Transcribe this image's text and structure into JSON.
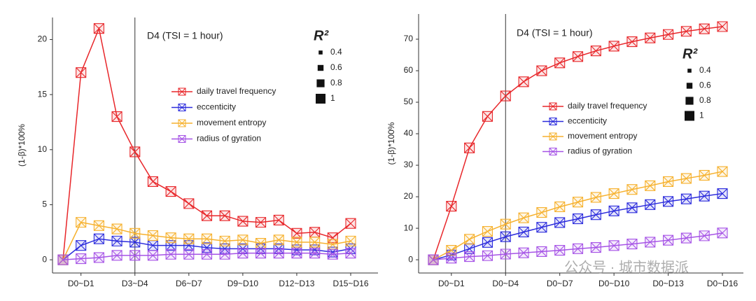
{
  "chart_data": [
    {
      "type": "line",
      "annotation": "D4 (TSI = 1 hour)",
      "y_label": "(1-β)*100%",
      "vline_category": "D3~D4",
      "categories": [
        null,
        "D0~D1",
        null,
        null,
        "D3~D4",
        null,
        null,
        "D6~D7",
        null,
        null,
        "D9~D10",
        null,
        null,
        "D12~D13",
        null,
        null,
        "D15~D16"
      ],
      "ylim": [
        -1.2,
        22
      ],
      "yticks": [
        0,
        5,
        10,
        15,
        20
      ],
      "size_legend": {
        "title": "R²",
        "values": [
          0.4,
          0.6,
          0.8,
          1.0
        ]
      },
      "series": [
        {
          "name": "daily travel frequency",
          "color": "#e8262a",
          "values": [
            0,
            17,
            21,
            13,
            9.8,
            7.1,
            6.2,
            5.1,
            4.0,
            4.0,
            3.5,
            3.4,
            3.6,
            2.4,
            2.5,
            2.0,
            3.3
          ]
        },
        {
          "name": "eccenticity",
          "color": "#2b2bdc",
          "values": [
            0,
            1.3,
            1.9,
            1.7,
            1.6,
            1.3,
            1.3,
            1.3,
            1.1,
            1.0,
            1.0,
            1.0,
            1.0,
            0.9,
            0.9,
            0.7,
            1.0
          ]
        },
        {
          "name": "movement entropy",
          "color": "#f6b12e",
          "values": [
            0,
            3.4,
            3.1,
            2.8,
            2.4,
            2.2,
            2.0,
            1.9,
            1.9,
            1.7,
            1.8,
            1.5,
            1.8,
            1.6,
            1.6,
            1.4,
            1.7
          ]
        },
        {
          "name": "radius of gyration",
          "color": "#a653e6",
          "values": [
            0,
            0.1,
            0.2,
            0.4,
            0.4,
            0.4,
            0.5,
            0.5,
            0.5,
            0.5,
            0.6,
            0.6,
            0.6,
            0.6,
            0.6,
            0.5,
            0.6
          ]
        }
      ]
    },
    {
      "type": "line",
      "annotation": "D4 (TSI = 1 hour)",
      "y_label": "(1-β)*100%",
      "vline_category": "D0~D4",
      "categories": [
        null,
        "D0~D1",
        null,
        null,
        "D0~D4",
        null,
        null,
        "D0~D7",
        null,
        null,
        "D0~D10",
        null,
        null,
        "D0~D13",
        null,
        null,
        "D0~D16"
      ],
      "ylim": [
        -4.2,
        78
      ],
      "yticks": [
        0,
        10,
        20,
        30,
        40,
        50,
        60,
        70
      ],
      "size_legend": {
        "title": "R²",
        "values": [
          0.4,
          0.6,
          0.8,
          1.0
        ]
      },
      "series": [
        {
          "name": "daily travel frequency",
          "color": "#e8262a",
          "values": [
            0,
            17,
            35.5,
            45.5,
            52,
            56.5,
            60,
            62.5,
            64.5,
            66.3,
            67.8,
            69.2,
            70.4,
            71.5,
            72.5,
            73.3,
            74.0
          ]
        },
        {
          "name": "eccenticity",
          "color": "#2b2bdc",
          "values": [
            0,
            1.5,
            3.5,
            5.5,
            7.3,
            8.8,
            10.3,
            11.8,
            13,
            14.3,
            15.5,
            16.5,
            17.5,
            18.5,
            19.3,
            20.2,
            21.0
          ]
        },
        {
          "name": "movement entropy",
          "color": "#f6b12e",
          "values": [
            0,
            3,
            6.5,
            9,
            11.3,
            13.3,
            15,
            16.8,
            18.3,
            19.8,
            21,
            22.3,
            23.5,
            24.8,
            25.8,
            26.8,
            28
          ]
        },
        {
          "name": "radius of gyration",
          "color": "#a653e6",
          "values": [
            0,
            0.5,
            1,
            1.3,
            1.8,
            2.2,
            2.6,
            3.0,
            3.5,
            3.9,
            4.5,
            5.0,
            5.6,
            6.2,
            6.9,
            7.6,
            8.5
          ]
        }
      ]
    }
  ],
  "watermark": "公众号 · 城市数据派"
}
